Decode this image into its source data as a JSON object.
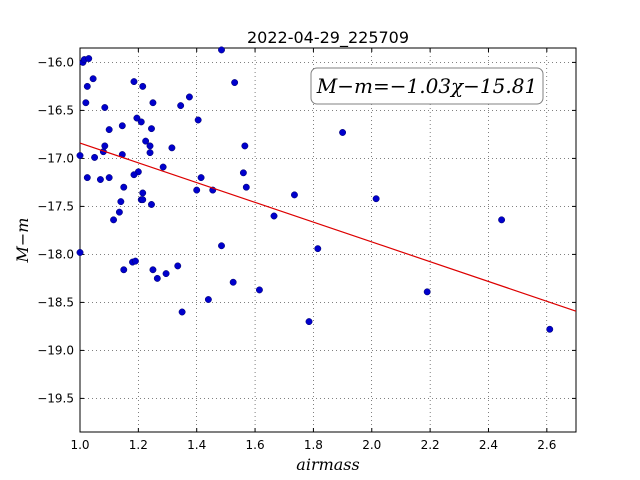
{
  "chart_data": {
    "type": "scatter",
    "title": "2022-04-29_225709",
    "xlabel": "airmass",
    "ylabel": "M−m",
    "xlim": [
      1.0,
      2.7
    ],
    "ylim": [
      -15.85,
      -19.85
    ],
    "y_inverted": true,
    "grid": true,
    "xticks": [
      1.0,
      1.2,
      1.4,
      1.6,
      1.8,
      2.0,
      2.2,
      2.4,
      2.6
    ],
    "xtick_labels": [
      "1.0",
      "1.2",
      "1.4",
      "1.6",
      "1.8",
      "2.0",
      "2.2",
      "2.4",
      "2.6"
    ],
    "yticks": [
      -16.0,
      -16.5,
      -17.0,
      -17.5,
      -18.0,
      -18.5,
      -19.0,
      -19.5
    ],
    "ytick_labels": [
      "−16.0",
      "−16.5",
      "−17.0",
      "−17.5",
      "−18.0",
      "−18.5",
      "−19.0",
      "−19.5"
    ],
    "annotation": "M−m=−1.03χ−15.81",
    "fit": {
      "slope": -1.03,
      "intercept": -15.81,
      "x_range": [
        1.0,
        2.7
      ],
      "color": "#dd0000"
    },
    "point_color": "#0000cc",
    "points": [
      [
        1.0,
        -16.97
      ],
      [
        1.0,
        -17.98
      ],
      [
        1.01,
        -16.0
      ],
      [
        1.015,
        -15.97
      ],
      [
        1.03,
        -15.96
      ],
      [
        1.02,
        -16.42
      ],
      [
        1.025,
        -16.25
      ],
      [
        1.045,
        -16.17
      ],
      [
        1.05,
        -16.99
      ],
      [
        1.025,
        -17.2
      ],
      [
        1.07,
        -17.22
      ],
      [
        1.08,
        -16.93
      ],
      [
        1.085,
        -16.87
      ],
      [
        1.085,
        -16.47
      ],
      [
        1.1,
        -16.7
      ],
      [
        1.1,
        -17.2
      ],
      [
        1.115,
        -17.64
      ],
      [
        1.135,
        -17.56
      ],
      [
        1.14,
        -17.45
      ],
      [
        1.145,
        -16.96
      ],
      [
        1.145,
        -16.66
      ],
      [
        1.15,
        -17.3
      ],
      [
        1.15,
        -18.16
      ],
      [
        1.18,
        -18.08
      ],
      [
        1.185,
        -16.2
      ],
      [
        1.19,
        -18.07
      ],
      [
        1.195,
        -16.58
      ],
      [
        1.2,
        -17.14
      ],
      [
        1.185,
        -17.17
      ],
      [
        1.21,
        -16.62
      ],
      [
        1.215,
        -16.25
      ],
      [
        1.21,
        -17.43
      ],
      [
        1.215,
        -17.36
      ],
      [
        1.215,
        -17.43
      ],
      [
        1.225,
        -16.82
      ],
      [
        1.24,
        -16.87
      ],
      [
        1.24,
        -16.94
      ],
      [
        1.245,
        -16.69
      ],
      [
        1.25,
        -16.42
      ],
      [
        1.245,
        -17.48
      ],
      [
        1.25,
        -18.16
      ],
      [
        1.265,
        -18.25
      ],
      [
        1.285,
        -17.09
      ],
      [
        1.295,
        -18.2
      ],
      [
        1.315,
        -16.89
      ],
      [
        1.335,
        -18.12
      ],
      [
        1.345,
        -16.45
      ],
      [
        1.35,
        -18.6
      ],
      [
        1.375,
        -16.36
      ],
      [
        1.4,
        -17.33
      ],
      [
        1.405,
        -16.6
      ],
      [
        1.415,
        -17.2
      ],
      [
        1.44,
        -18.47
      ],
      [
        1.455,
        -17.33
      ],
      [
        1.485,
        -15.87
      ],
      [
        1.485,
        -17.91
      ],
      [
        1.525,
        -18.29
      ],
      [
        1.53,
        -16.21
      ],
      [
        1.56,
        -17.15
      ],
      [
        1.565,
        -16.87
      ],
      [
        1.57,
        -17.3
      ],
      [
        1.615,
        -18.37
      ],
      [
        1.665,
        -17.6
      ],
      [
        1.735,
        -17.38
      ],
      [
        1.785,
        -18.7
      ],
      [
        1.815,
        -17.94
      ],
      [
        1.9,
        -16.73
      ],
      [
        2.015,
        -17.42
      ],
      [
        2.19,
        -18.39
      ],
      [
        2.445,
        -17.64
      ],
      [
        2.61,
        -18.78
      ]
    ]
  }
}
